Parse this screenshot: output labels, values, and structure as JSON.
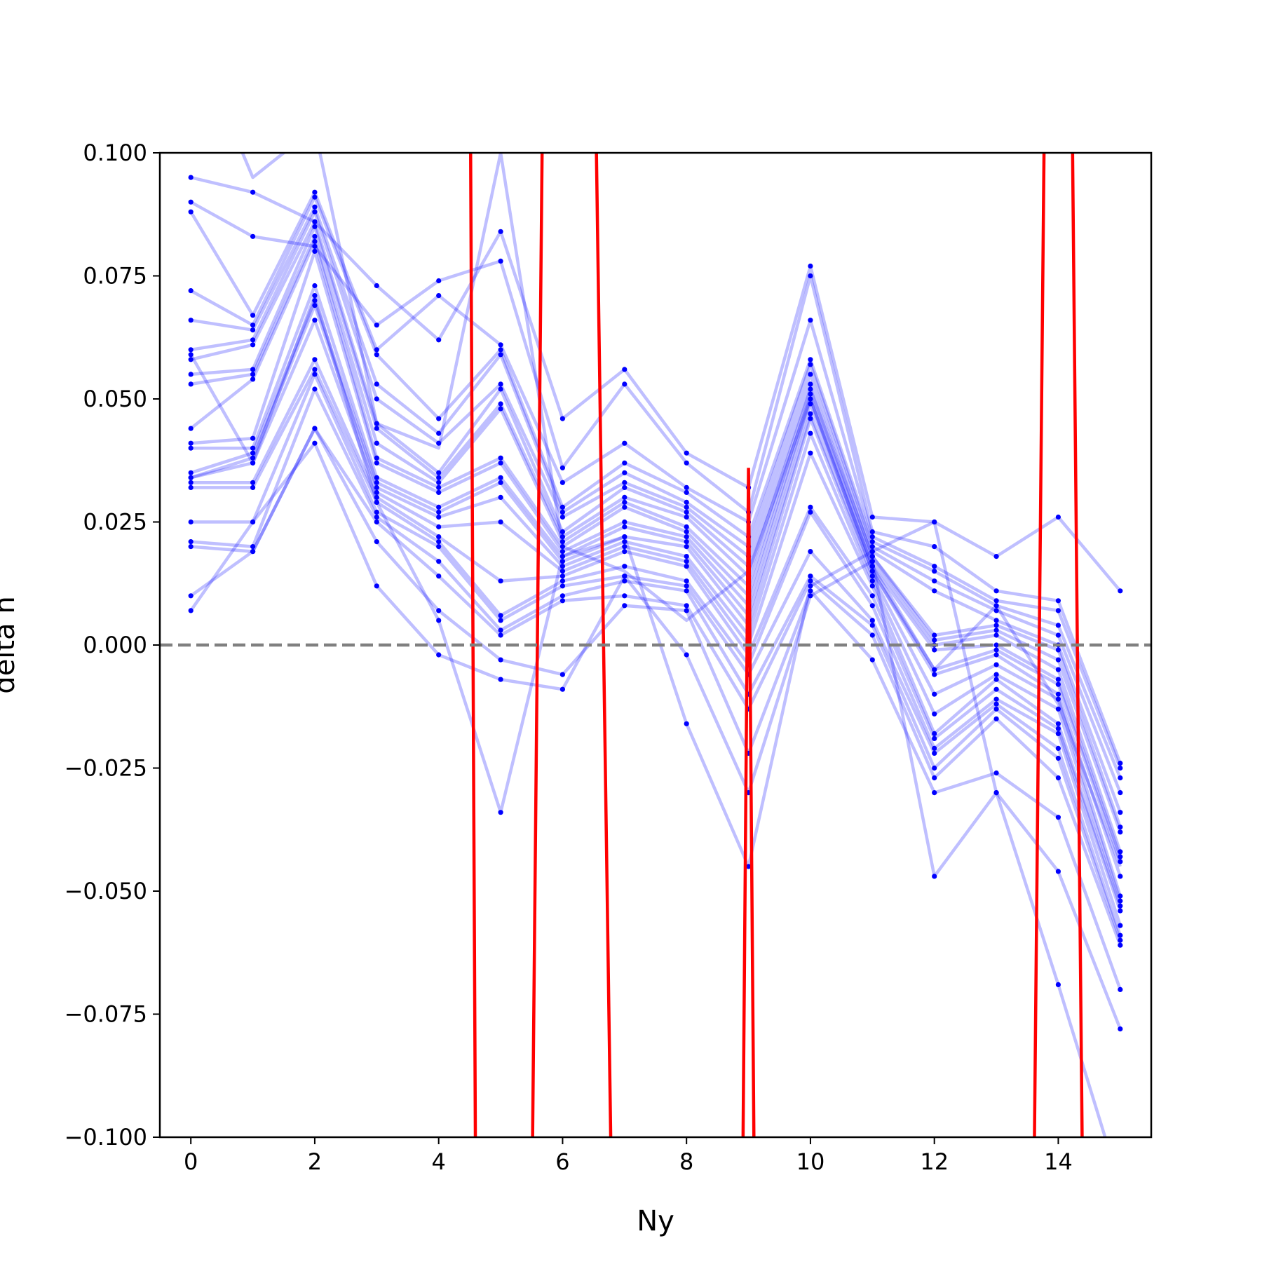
{
  "chart_data": {
    "type": "line",
    "title": "",
    "xlabel": "Ny",
    "ylabel": "delta h",
    "xlim": [
      -0.5,
      15.5
    ],
    "ylim": [
      -0.1,
      0.1
    ],
    "xticks": [
      0,
      2,
      4,
      6,
      8,
      10,
      12,
      14
    ],
    "xtick_labels": [
      "0",
      "2",
      "4",
      "6",
      "8",
      "10",
      "12",
      "14"
    ],
    "yticks": [
      0.1,
      0.075,
      0.05,
      0.025,
      0.0,
      -0.025,
      -0.05,
      -0.075,
      -0.1
    ],
    "ytick_labels": [
      "0.100",
      "0.075",
      "0.050",
      "0.025",
      "0.000",
      "−0.025",
      "−0.050",
      "−0.075",
      "−0.100"
    ],
    "grid": false,
    "reference_line": {
      "y": 0.0,
      "style": "dashed",
      "color": "#808080"
    },
    "x": [
      0,
      1,
      2,
      3,
      4,
      5,
      6,
      7,
      8,
      9,
      10,
      11,
      12,
      13,
      14,
      15
    ],
    "series": [
      {
        "values": [
          0.095,
          0.092,
          0.086,
          0.073,
          0.062,
          0.084,
          0.046,
          0.056,
          0.039,
          0.032,
          0.077,
          0.026,
          0.025,
          0.018,
          0.026,
          0.011
        ],
        "color": "#0000ff",
        "alpha": 0.25,
        "markers": true
      },
      {
        "values": [
          0.09,
          0.083,
          0.081,
          0.065,
          0.074,
          0.078,
          0.036,
          0.053,
          0.037,
          0.027,
          0.075,
          0.023,
          0.02,
          0.011,
          0.009,
          -0.024
        ],
        "color": "#0000ff",
        "alpha": 0.25,
        "markers": true
      },
      {
        "values": [
          0.088,
          0.067,
          0.092,
          0.06,
          0.071,
          0.061,
          0.033,
          0.041,
          0.032,
          0.025,
          0.066,
          0.022,
          0.016,
          0.009,
          0.007,
          -0.025
        ],
        "color": "#0000ff",
        "alpha": 0.25,
        "markers": true
      },
      {
        "values": [
          0.072,
          0.065,
          0.091,
          0.059,
          0.046,
          0.06,
          0.028,
          0.037,
          0.031,
          0.022,
          0.058,
          0.021,
          0.015,
          0.008,
          0.004,
          -0.027
        ],
        "color": "#0000ff",
        "alpha": 0.25,
        "markers": true
      },
      {
        "values": [
          0.066,
          0.064,
          0.089,
          0.053,
          0.043,
          0.059,
          0.027,
          0.035,
          0.029,
          0.02,
          0.057,
          0.02,
          0.013,
          0.007,
          0.002,
          -0.03
        ],
        "color": "#0000ff",
        "alpha": 0.25,
        "markers": true
      },
      {
        "values": [
          0.06,
          0.062,
          0.088,
          0.05,
          0.041,
          0.053,
          0.026,
          0.033,
          0.028,
          0.018,
          0.055,
          0.019,
          0.011,
          0.005,
          0.0,
          -0.034
        ],
        "color": "#0000ff",
        "alpha": 0.25,
        "markers": true
      },
      {
        "values": [
          0.058,
          0.061,
          0.086,
          0.045,
          0.035,
          0.052,
          0.023,
          0.032,
          0.027,
          0.016,
          0.053,
          0.018,
          0.002,
          0.004,
          -0.001,
          -0.037
        ],
        "color": "#0000ff",
        "alpha": 0.25,
        "markers": true
      },
      {
        "values": [
          0.055,
          0.056,
          0.085,
          0.044,
          0.034,
          0.049,
          0.022,
          0.03,
          0.026,
          0.014,
          0.052,
          0.018,
          0.001,
          0.003,
          -0.003,
          -0.038
        ],
        "color": "#0000ff",
        "alpha": 0.25,
        "markers": true
      },
      {
        "values": [
          0.053,
          0.055,
          0.083,
          0.041,
          0.033,
          0.048,
          0.021,
          0.029,
          0.024,
          0.012,
          0.051,
          0.017,
          0.0,
          0.002,
          -0.005,
          -0.042
        ],
        "color": "#0000ff",
        "alpha": 0.25,
        "markers": true
      },
      {
        "values": [
          0.044,
          0.054,
          0.082,
          0.038,
          0.032,
          0.038,
          0.02,
          0.028,
          0.023,
          0.01,
          0.05,
          0.016,
          -0.001,
          0.0,
          -0.007,
          -0.043
        ],
        "color": "#0000ff",
        "alpha": 0.25,
        "markers": true
      },
      {
        "values": [
          0.041,
          0.042,
          0.08,
          0.037,
          0.031,
          0.037,
          0.019,
          0.025,
          0.022,
          0.008,
          0.049,
          0.016,
          -0.005,
          -0.001,
          -0.008,
          -0.044
        ],
        "color": "#0000ff",
        "alpha": 0.25,
        "markers": true
      },
      {
        "values": [
          0.04,
          0.04,
          0.073,
          0.034,
          0.028,
          0.034,
          0.018,
          0.024,
          0.021,
          0.006,
          0.047,
          0.015,
          -0.006,
          -0.002,
          -0.01,
          -0.047
        ],
        "color": "#0000ff",
        "alpha": 0.25,
        "markers": true
      },
      {
        "values": [
          0.035,
          0.039,
          0.07,
          0.033,
          0.027,
          0.033,
          0.017,
          0.022,
          0.02,
          0.004,
          0.046,
          0.014,
          -0.01,
          -0.004,
          -0.011,
          -0.051
        ],
        "color": "#0000ff",
        "alpha": 0.25,
        "markers": true
      },
      {
        "values": [
          0.034,
          0.038,
          0.069,
          0.032,
          0.026,
          0.03,
          0.016,
          0.021,
          0.018,
          0.002,
          0.043,
          0.013,
          -0.014,
          -0.006,
          -0.013,
          -0.052
        ],
        "color": "#0000ff",
        "alpha": 0.25,
        "markers": true
      },
      {
        "values": [
          0.034,
          0.037,
          0.066,
          0.031,
          0.024,
          0.025,
          0.015,
          0.02,
          0.017,
          0.0,
          0.039,
          0.012,
          -0.018,
          -0.007,
          -0.016,
          -0.053
        ],
        "color": "#0000ff",
        "alpha": 0.25,
        "markers": true
      },
      {
        "values": [
          0.033,
          0.033,
          0.058,
          0.03,
          0.022,
          0.013,
          0.014,
          0.019,
          0.016,
          -0.002,
          0.028,
          0.01,
          -0.019,
          -0.009,
          -0.017,
          -0.054
        ],
        "color": "#0000ff",
        "alpha": 0.25,
        "markers": true
      },
      {
        "values": [
          0.032,
          0.032,
          0.056,
          0.029,
          0.021,
          0.006,
          0.013,
          0.016,
          0.013,
          -0.004,
          0.027,
          0.008,
          -0.021,
          -0.011,
          -0.018,
          -0.057
        ],
        "color": "#0000ff",
        "alpha": 0.25,
        "markers": true
      },
      {
        "values": [
          0.025,
          0.025,
          0.055,
          0.027,
          0.02,
          0.005,
          0.012,
          0.014,
          0.012,
          -0.006,
          0.019,
          0.005,
          -0.022,
          -0.012,
          -0.021,
          -0.059
        ],
        "color": "#0000ff",
        "alpha": 0.25,
        "markers": true
      },
      {
        "values": [
          0.021,
          0.02,
          0.052,
          0.026,
          0.017,
          0.003,
          0.01,
          0.013,
          0.011,
          -0.01,
          0.014,
          0.004,
          -0.025,
          -0.013,
          -0.023,
          -0.06
        ],
        "color": "#0000ff",
        "alpha": 0.25,
        "markers": true
      },
      {
        "values": [
          0.02,
          0.019,
          0.044,
          0.025,
          0.014,
          0.002,
          0.009,
          0.01,
          0.008,
          -0.013,
          0.013,
          0.002,
          -0.027,
          -0.015,
          -0.027,
          -0.061
        ],
        "color": "#0000ff",
        "alpha": 0.25,
        "markers": true
      },
      {
        "values": [
          0.01,
          0.019,
          0.044,
          0.021,
          0.007,
          -0.003,
          -0.006,
          0.008,
          0.007,
          -0.022,
          0.011,
          -0.003,
          -0.03,
          -0.026,
          -0.035,
          -0.07
        ],
        "color": "#0000ff",
        "alpha": 0.25,
        "markers": true
      },
      {
        "values": [
          0.007,
          0.025,
          0.041,
          0.012,
          -0.002,
          -0.007,
          -0.009,
          0.014,
          -0.002,
          -0.03,
          0.01,
          0.017,
          -0.047,
          -0.03,
          -0.046,
          -0.078
        ],
        "color": "#0000ff",
        "alpha": 0.25,
        "markers": true
      },
      {
        "values": [
          0.059,
          0.037,
          0.071,
          0.029,
          0.005,
          -0.034,
          0.018,
          0.022,
          -0.016,
          -0.045,
          0.012,
          0.019,
          0.025,
          -0.03,
          -0.069,
          -0.11
        ],
        "color": "#0000ff",
        "alpha": 0.25,
        "markers": true
      },
      {
        "values": [
          0.125,
          0.095,
          0.105,
          0.045,
          0.04,
          0.1,
          0.02,
          0.015,
          0.005,
          0.015,
          0.05,
          0.015,
          -0.005,
          0.008,
          -0.012,
          -0.045
        ],
        "color": "#0000ff",
        "alpha": 0.25,
        "markers": false
      }
    ],
    "outlier_series": {
      "color": "#ff0000",
      "x": [
        4.5,
        4.6,
        5.5,
        5.7,
        6.5,
        6.8,
        8.9,
        9.0,
        9.1,
        13.6,
        13.8,
        14.2,
        14.4
      ],
      "values": [
        0.14,
        -0.12,
        -0.12,
        0.14,
        0.14,
        -0.12,
        -0.12,
        0.036,
        -0.12,
        -0.12,
        0.14,
        0.14,
        -0.12
      ]
    }
  }
}
